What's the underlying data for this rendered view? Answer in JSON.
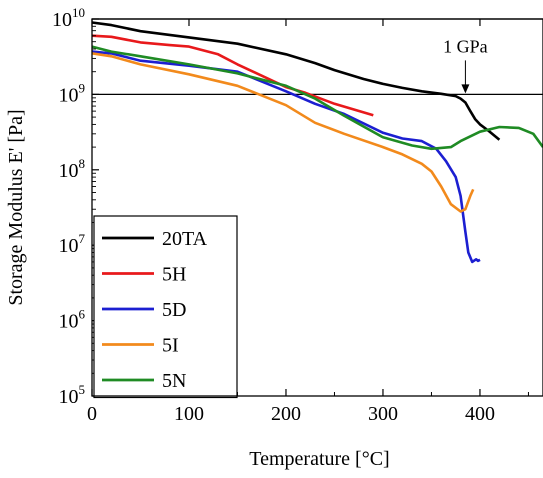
{
  "chart_data": {
    "type": "line",
    "xlabel": "Temperature [°C]",
    "ylabel": "Storage Modulus E' [Pa]",
    "yscale": "log",
    "xlim": [
      0,
      465
    ],
    "ylim": [
      100000,
      10000000000
    ],
    "x_ticks": [
      0,
      100,
      200,
      300,
      400
    ],
    "y_tick_labels": [
      {
        "base": "10",
        "exp": "5"
      },
      {
        "base": "10",
        "exp": "6"
      },
      {
        "base": "10",
        "exp": "7"
      },
      {
        "base": "10",
        "exp": "8"
      },
      {
        "base": "10",
        "exp": "9"
      },
      {
        "base": "10",
        "exp": "10"
      }
    ],
    "reference_lines": [
      1000000000,
      10000000000
    ],
    "annotation": {
      "text": "1 GPa",
      "x": 385,
      "y": 1000000000
    },
    "legend_position": "bottom-left",
    "grid": false,
    "series": [
      {
        "name": "20TA",
        "color": "#000000",
        "points": [
          [
            0,
            9000000000.0
          ],
          [
            20,
            8300000000.0
          ],
          [
            50,
            6900000000.0
          ],
          [
            100,
            5700000000.0
          ],
          [
            150,
            4700000000.0
          ],
          [
            200,
            3400000000.0
          ],
          [
            230,
            2600000000.0
          ],
          [
            250,
            2100000000.0
          ],
          [
            280,
            1600000000.0
          ],
          [
            300,
            1380000000.0
          ],
          [
            320,
            1220000000.0
          ],
          [
            340,
            1100000000.0
          ],
          [
            360,
            1020000000.0
          ],
          [
            375,
            950000000.0
          ],
          [
            380,
            880000000.0
          ],
          [
            385,
            780000000.0
          ],
          [
            390,
            600000000.0
          ],
          [
            395,
            470000000.0
          ],
          [
            400,
            400000000.0
          ],
          [
            410,
            320000000.0
          ],
          [
            420,
            250000000.0
          ]
        ]
      },
      {
        "name": "5H",
        "color": "#e8191b",
        "points": [
          [
            0,
            6000000000.0
          ],
          [
            20,
            5800000000.0
          ],
          [
            50,
            4900000000.0
          ],
          [
            80,
            4500000000.0
          ],
          [
            100,
            4300000000.0
          ],
          [
            130,
            3400000000.0
          ],
          [
            150,
            2500000000.0
          ],
          [
            170,
            1900000000.0
          ],
          [
            200,
            1250000000.0
          ],
          [
            220,
            1050000000.0
          ],
          [
            250,
            750000000.0
          ],
          [
            270,
            630000000.0
          ],
          [
            290,
            530000000.0
          ]
        ]
      },
      {
        "name": "5D",
        "color": "#1c1fd1",
        "points": [
          [
            0,
            3700000000.0
          ],
          [
            20,
            3500000000.0
          ],
          [
            50,
            2800000000.0
          ],
          [
            100,
            2400000000.0
          ],
          [
            150,
            2000000000.0
          ],
          [
            200,
            1100000000.0
          ],
          [
            230,
            750000000.0
          ],
          [
            260,
            550000000.0
          ],
          [
            300,
            310000000.0
          ],
          [
            320,
            260000000.0
          ],
          [
            340,
            240000000.0
          ],
          [
            355,
            190000000.0
          ],
          [
            365,
            130000000.0
          ],
          [
            375,
            80000000.0
          ],
          [
            380,
            45000000.0
          ],
          [
            385,
            15000000.0
          ],
          [
            388,
            8000000.0
          ],
          [
            392,
            6000000.0
          ],
          [
            396,
            6500000.0
          ],
          [
            398,
            6200000.0
          ],
          [
            400,
            6400000.0
          ]
        ]
      },
      {
        "name": "5I",
        "color": "#f28a1c",
        "points": [
          [
            0,
            3500000000.0
          ],
          [
            20,
            3200000000.0
          ],
          [
            50,
            2500000000.0
          ],
          [
            100,
            1850000000.0
          ],
          [
            150,
            1300000000.0
          ],
          [
            200,
            720000000.0
          ],
          [
            230,
            420000000.0
          ],
          [
            260,
            300000000.0
          ],
          [
            300,
            200000000.0
          ],
          [
            320,
            160000000.0
          ],
          [
            340,
            120000000.0
          ],
          [
            350,
            95000000.0
          ],
          [
            360,
            60000000.0
          ],
          [
            370,
            35000000.0
          ],
          [
            380,
            28000000.0
          ],
          [
            385,
            30000000.0
          ],
          [
            390,
            45000000.0
          ],
          [
            393,
            55000000.0
          ]
        ]
      },
      {
        "name": "5N",
        "color": "#1f8b24",
        "points": [
          [
            0,
            4300000000.0
          ],
          [
            20,
            3700000000.0
          ],
          [
            50,
            3200000000.0
          ],
          [
            100,
            2500000000.0
          ],
          [
            150,
            1900000000.0
          ],
          [
            200,
            1300000000.0
          ],
          [
            230,
            880000000.0
          ],
          [
            260,
            520000000.0
          ],
          [
            300,
            270000000.0
          ],
          [
            330,
            210000000.0
          ],
          [
            350,
            190000000.0
          ],
          [
            370,
            200000000.0
          ],
          [
            380,
            240000000.0
          ],
          [
            400,
            320000000.0
          ],
          [
            420,
            370000000.0
          ],
          [
            440,
            360000000.0
          ],
          [
            455,
            300000000.0
          ],
          [
            465,
            200000000.0
          ]
        ]
      }
    ]
  }
}
